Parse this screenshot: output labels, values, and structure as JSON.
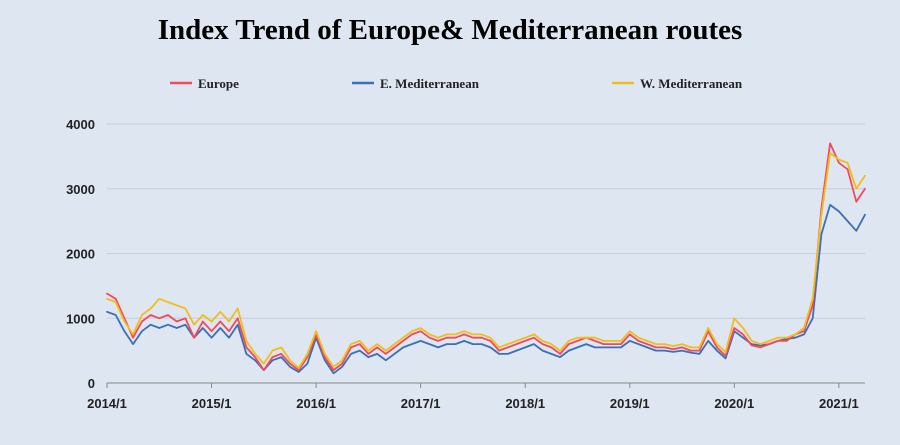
{
  "chart_data": {
    "type": "line",
    "title": "Index Trend of Europe& Mediterranean routes",
    "xlabel": "",
    "ylabel": "",
    "ylim": [
      0,
      4000
    ],
    "yticks": [
      0,
      1000,
      2000,
      3000,
      4000
    ],
    "xticks": [
      "2014/1",
      "2015/1",
      "2016/1",
      "2017/1",
      "2018/1",
      "2019/1",
      "2020/1",
      "2021/1"
    ],
    "grid": "horizontal",
    "legend_position": "top",
    "x": [
      "2014/1",
      "2014/2",
      "2014/3",
      "2014/4",
      "2014/5",
      "2014/6",
      "2014/7",
      "2014/8",
      "2014/9",
      "2014/10",
      "2014/11",
      "2014/12",
      "2015/1",
      "2015/2",
      "2015/3",
      "2015/4",
      "2015/5",
      "2015/6",
      "2015/7",
      "2015/8",
      "2015/9",
      "2015/10",
      "2015/11",
      "2015/12",
      "2016/1",
      "2016/2",
      "2016/3",
      "2016/4",
      "2016/5",
      "2016/6",
      "2016/7",
      "2016/8",
      "2016/9",
      "2016/10",
      "2016/11",
      "2016/12",
      "2017/1",
      "2017/2",
      "2017/3",
      "2017/4",
      "2017/5",
      "2017/6",
      "2017/7",
      "2017/8",
      "2017/9",
      "2017/10",
      "2017/11",
      "2017/12",
      "2018/1",
      "2018/2",
      "2018/3",
      "2018/4",
      "2018/5",
      "2018/6",
      "2018/7",
      "2018/8",
      "2018/9",
      "2018/10",
      "2018/11",
      "2018/12",
      "2019/1",
      "2019/2",
      "2019/3",
      "2019/4",
      "2019/5",
      "2019/6",
      "2019/7",
      "2019/8",
      "2019/9",
      "2019/10",
      "2019/11",
      "2019/12",
      "2020/1",
      "2020/2",
      "2020/3",
      "2020/4",
      "2020/5",
      "2020/6",
      "2020/7",
      "2020/8",
      "2020/9",
      "2020/10",
      "2020/11",
      "2020/12",
      "2021/1",
      "2021/2",
      "2021/3",
      "2021/4"
    ],
    "series": [
      {
        "name": "Europe",
        "color": "#f04a5c",
        "values": [
          1380,
          1300,
          1000,
          700,
          950,
          1050,
          1000,
          1050,
          950,
          1000,
          700,
          950,
          800,
          950,
          800,
          1000,
          550,
          400,
          200,
          400,
          450,
          300,
          200,
          400,
          750,
          400,
          200,
          300,
          550,
          600,
          450,
          550,
          450,
          550,
          650,
          750,
          800,
          700,
          650,
          700,
          700,
          750,
          700,
          700,
          650,
          500,
          550,
          600,
          650,
          700,
          600,
          550,
          450,
          600,
          650,
          700,
          650,
          600,
          600,
          600,
          750,
          650,
          600,
          550,
          550,
          520,
          550,
          500,
          500,
          800,
          550,
          420,
          850,
          750,
          580,
          550,
          600,
          650,
          650,
          750,
          800,
          1200,
          2700,
          3700,
          3400,
          3300,
          2800,
          3000
        ]
      },
      {
        "name": "E. Mediterranean",
        "color": "#3c6fb4",
        "values": [
          1100,
          1050,
          800,
          600,
          800,
          900,
          850,
          900,
          850,
          900,
          700,
          850,
          700,
          850,
          700,
          900,
          450,
          350,
          200,
          350,
          400,
          250,
          170,
          300,
          700,
          350,
          150,
          250,
          450,
          500,
          400,
          450,
          350,
          450,
          550,
          600,
          650,
          600,
          550,
          600,
          600,
          650,
          600,
          600,
          550,
          450,
          450,
          500,
          550,
          600,
          500,
          450,
          400,
          500,
          550,
          600,
          550,
          550,
          550,
          550,
          650,
          600,
          550,
          500,
          500,
          480,
          500,
          470,
          450,
          650,
          500,
          380,
          800,
          700,
          600,
          580,
          600,
          650,
          680,
          700,
          750,
          1000,
          2300,
          2750,
          2650,
          2500,
          2350,
          2600
        ]
      },
      {
        "name": "W. Mediterranean",
        "color": "#f2bd1c",
        "values": [
          1300,
          1250,
          950,
          750,
          1050,
          1150,
          1300,
          1250,
          1200,
          1150,
          900,
          1050,
          950,
          1100,
          950,
          1150,
          650,
          450,
          300,
          500,
          550,
          350,
          230,
          450,
          800,
          450,
          250,
          350,
          600,
          650,
          500,
          600,
          500,
          600,
          700,
          800,
          850,
          750,
          700,
          750,
          750,
          800,
          750,
          750,
          700,
          550,
          600,
          650,
          700,
          750,
          650,
          600,
          500,
          650,
          700,
          700,
          700,
          650,
          650,
          650,
          800,
          700,
          650,
          600,
          600,
          570,
          600,
          550,
          550,
          850,
          600,
          480,
          1000,
          850,
          650,
          600,
          650,
          700,
          700,
          750,
          850,
          1300,
          2600,
          3550,
          3450,
          3400,
          3000,
          3200
        ]
      }
    ]
  }
}
